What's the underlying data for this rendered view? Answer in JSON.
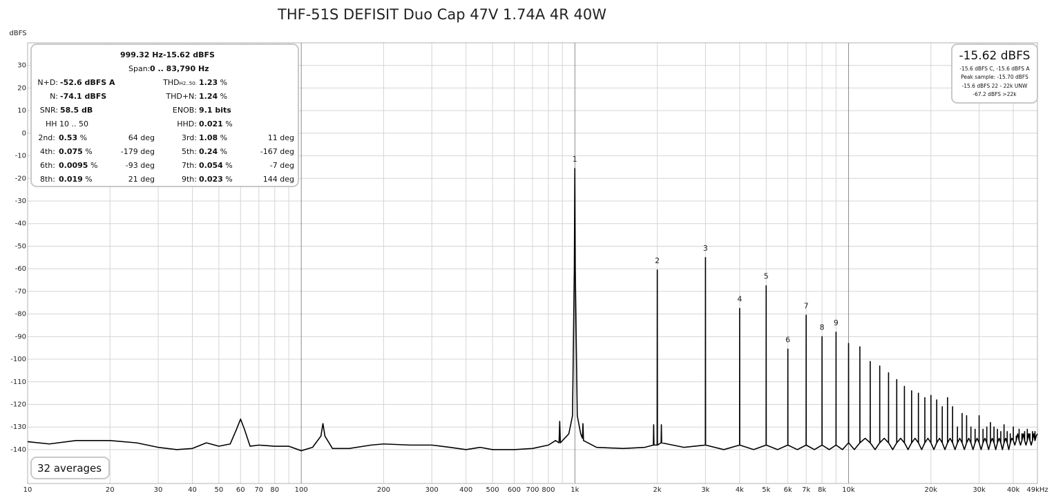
{
  "chart_data": {
    "type": "line",
    "title": "THF-51S DEFISIT Duo Cap 47V 1.74A 4R 40W",
    "ylabel": "dBFS",
    "log_x": true,
    "grid": true,
    "xlim": [
      10,
      49000
    ],
    "ylim": [
      -155,
      40
    ],
    "xticks": [
      10,
      20,
      30,
      40,
      50,
      60,
      70,
      80,
      100,
      200,
      300,
      400,
      500,
      600,
      700,
      800,
      {
        "value": 1000,
        "label": "1k"
      },
      {
        "value": 2000,
        "label": "2k"
      },
      {
        "value": 3000,
        "label": "3k"
      },
      {
        "value": 4000,
        "label": "4k"
      },
      {
        "value": 5000,
        "label": "5k"
      },
      {
        "value": 6000,
        "label": "6k"
      },
      {
        "value": 7000,
        "label": "7k"
      },
      {
        "value": 8000,
        "label": "8k"
      },
      {
        "value": 10000,
        "label": "10k"
      },
      {
        "value": 20000,
        "label": "20k"
      },
      {
        "value": 30000,
        "label": "30k"
      },
      {
        "value": 40000,
        "label": "40k"
      },
      {
        "value": 49000,
        "label": "49kHz"
      }
    ],
    "x_minor_ticks": [
      90,
      900,
      9000
    ],
    "yticks": [
      30,
      20,
      10,
      0,
      -10,
      -20,
      -30,
      -40,
      -50,
      -60,
      -70,
      -80,
      -90,
      -100,
      -110,
      -120,
      -130,
      -140
    ],
    "x": [
      10,
      12,
      15,
      20,
      25,
      30,
      35,
      40,
      45,
      50,
      55,
      58,
      60,
      62,
      65,
      70,
      80,
      90,
      100,
      110,
      118,
      120,
      122,
      130,
      150,
      180,
      200,
      250,
      300,
      350,
      400,
      450,
      500,
      600,
      700,
      800,
      850,
      875,
      880,
      885,
      950,
      980,
      995,
      999.32,
      1003,
      1020,
      1050,
      1065,
      1070,
      1075,
      1200,
      1500,
      1800,
      1935,
      1940,
      1945,
      1997,
      2000,
      2003,
      2065,
      2070,
      2075,
      2500,
      2997,
      3000,
      3003,
      3500,
      3997,
      4000,
      4003,
      4500,
      4997,
      5000,
      5003,
      5500,
      5997,
      6000,
      6003,
      6500,
      6997,
      7000,
      7003,
      7500,
      7997,
      8000,
      8003,
      8500,
      8997,
      9000,
      9003,
      9500,
      9995,
      10000,
      10005,
      10500,
      10995,
      11000,
      11005,
      11500,
      11995,
      12000,
      12005,
      12500,
      12995,
      13000,
      13005,
      13500,
      13995,
      14000,
      14005,
      14500,
      14995,
      15000,
      15005,
      15500,
      15995,
      16000,
      16005,
      16500,
      16995,
      17000,
      17005,
      17500,
      17995,
      18000,
      18005,
      18500,
      18995,
      19000,
      19005,
      19500,
      19995,
      20000,
      20005,
      20500,
      20995,
      21000,
      21005,
      21500,
      21995,
      22000,
      22005,
      22500,
      22995,
      23000,
      23005,
      23500,
      23995,
      24000,
      24005,
      24500,
      24995,
      25000,
      25005,
      25500,
      25995,
      26000,
      26005,
      26500,
      26995,
      27000,
      27005,
      27500,
      27995,
      28000,
      28005,
      28500,
      28995,
      29000,
      29005,
      29500,
      29995,
      30000,
      30005,
      30500,
      30995,
      31000,
      31005,
      31500,
      31995,
      32000,
      32005,
      32500,
      32995,
      33000,
      33005,
      33500,
      33995,
      34000,
      34005,
      34500,
      34995,
      35000,
      35005,
      35500,
      35995,
      36000,
      36005,
      36500,
      36995,
      37000,
      37005,
      37500,
      37995,
      38000,
      38005,
      38500,
      38995,
      39000,
      39005,
      39500,
      39995,
      40000,
      40005,
      40500,
      40995,
      41000,
      41005,
      41500,
      41995,
      42000,
      42005,
      42500,
      42995,
      43000,
      43005,
      43500,
      43995,
      44000,
      44005,
      44500,
      44995,
      45000,
      45005,
      45500,
      45995,
      46000,
      46005,
      46500,
      46995,
      47000,
      47005,
      47500,
      47995,
      48000,
      48005,
      48500,
      49000
    ],
    "series": [
      {
        "color": "#000000",
        "values": [
          -136.5,
          -137.5,
          -136,
          -136,
          -137,
          -139,
          -140,
          -139.5,
          -137,
          -138.5,
          -137.5,
          -131,
          -126.5,
          -131,
          -138.5,
          -138,
          -138.5,
          -138.5,
          -140.5,
          -139,
          -134,
          -128.5,
          -134,
          -139.5,
          -139.5,
          -138,
          -137.5,
          -138,
          -138,
          -139,
          -140,
          -139,
          -140,
          -140,
          -139.5,
          -138,
          -136,
          -137,
          -127.5,
          -137,
          -133,
          -125,
          -60,
          -15.62,
          -60,
          -125,
          -133,
          -135,
          -128.5,
          -136,
          -139,
          -139.5,
          -139,
          -138,
          -129,
          -138,
          -138,
          -60.5,
          -138,
          -137,
          -129,
          -137,
          -139,
          -138,
          -55,
          -138,
          -140,
          -138,
          -77.5,
          -138,
          -140,
          -138,
          -67.5,
          -138,
          -140,
          -138,
          -95.5,
          -138,
          -140,
          -138,
          -80.5,
          -138,
          -140,
          -138,
          -90,
          -138,
          -140,
          -138,
          -88,
          -138,
          -140,
          -137,
          -93,
          -137,
          -140,
          -137,
          -94.5,
          -137,
          -135,
          -137,
          -101,
          -137,
          -140,
          -137,
          -103,
          -137,
          -135,
          -137,
          -106,
          -137,
          -140,
          -137,
          -109,
          -137,
          -135,
          -137,
          -112,
          -137,
          -140,
          -137,
          -114,
          -137,
          -135,
          -137,
          -115,
          -137,
          -140,
          -137,
          -117,
          -137,
          -135,
          -137,
          -116,
          -137,
          -140,
          -137,
          -118,
          -137,
          -135,
          -137,
          -121,
          -137,
          -140,
          -137,
          -117,
          -137,
          -135,
          -137,
          -121,
          -137,
          -140,
          -137,
          -130,
          -137,
          -135,
          -137,
          -124,
          -137,
          -140,
          -137,
          -125,
          -137,
          -135,
          -137,
          -130,
          -137,
          -140,
          -137,
          -131,
          -137,
          -135,
          -137,
          -125,
          -137,
          -140,
          -137,
          -131,
          -137,
          -135,
          -137,
          -130,
          -137,
          -140,
          -137,
          -128,
          -137,
          -135,
          -137,
          -130,
          -137,
          -140,
          -137,
          -131,
          -137,
          -135,
          -137,
          -132,
          -137,
          -140,
          -137,
          -129,
          -137,
          -135,
          -137,
          -132,
          -137,
          -140,
          -137,
          -133,
          -137,
          -135,
          -136,
          -130,
          -136,
          -138,
          -136,
          -134,
          -136,
          -133,
          -136,
          -131,
          -136,
          -138,
          -136,
          -133,
          -136,
          -133,
          -136,
          -132,
          -136,
          -138,
          -136,
          -131,
          -136,
          -133,
          -136,
          -133,
          -136,
          -138,
          -136,
          -132,
          -136,
          -133,
          -136,
          -132,
          -136,
          -134,
          -133
        ]
      }
    ],
    "annotations": [
      {
        "text": "1",
        "x": 999.32,
        "y": -15.62
      },
      {
        "text": "2",
        "x": 2000,
        "y": -60.5
      },
      {
        "text": "3",
        "x": 3000,
        "y": -55
      },
      {
        "text": "4",
        "x": 4000,
        "y": -77.5
      },
      {
        "text": "5",
        "x": 5000,
        "y": -67.5
      },
      {
        "text": "6",
        "x": 6000,
        "y": -95.5
      },
      {
        "text": "7",
        "x": 7000,
        "y": -80.5
      },
      {
        "text": "8",
        "x": 8000,
        "y": -90
      },
      {
        "text": "9",
        "x": 9000,
        "y": -88
      }
    ]
  },
  "info_panel": {
    "frequency": "999.32 Hz",
    "level": "-15.62 dBFS",
    "span_label": "Span:",
    "span": "0 .. 83,790 Hz",
    "metrics": [
      {
        "label": "N+D:",
        "value": "-52.6 dBFS A"
      },
      {
        "label": "N:",
        "value": "-74.1 dBFS"
      },
      {
        "label": "SNR:",
        "value": "58.5 dB"
      },
      {
        "label": "HH 10 .. 50"
      }
    ],
    "metrics_right": [
      {
        "label": "THD",
        "sub": "H2..50:",
        "value": "1.23",
        "unit": "%"
      },
      {
        "label": "THD+N:",
        "value": "1.24",
        "unit": "%"
      },
      {
        "label": "ENOB:",
        "value": "9.1 bits"
      },
      {
        "label": "HHD:",
        "value": "0.021",
        "unit": "%"
      }
    ],
    "harmonics": [
      {
        "label": "2nd:",
        "value": "0.53",
        "unit": "%",
        "phase": "64 deg"
      },
      {
        "label": "3rd:",
        "value": "1.08",
        "unit": "%",
        "phase": "11 deg"
      },
      {
        "label": "4th:",
        "value": "0.075",
        "unit": "%",
        "phase": "-179 deg"
      },
      {
        "label": "5th:",
        "value": "0.24",
        "unit": "%",
        "phase": "-167 deg"
      },
      {
        "label": "6th:",
        "value": "0.0095",
        "unit": "%",
        "phase": "-93 deg"
      },
      {
        "label": "7th:",
        "value": "0.054",
        "unit": "%",
        "phase": "-7 deg"
      },
      {
        "label": "8th:",
        "value": "0.019",
        "unit": "%",
        "phase": "21 deg"
      },
      {
        "label": "9th:",
        "value": "0.023",
        "unit": "%",
        "phase": "144 deg"
      }
    ]
  },
  "level_panel": {
    "level": "-15.62 dBFS",
    "lines": [
      "-15.6 dBFS C, -15.6 dBFS A",
      "Peak sample: -15.70 dBFS",
      "-15.6 dBFS 22 - 22k UNW",
      "-67.2 dBFS >22k"
    ]
  },
  "averages": "32 averages"
}
